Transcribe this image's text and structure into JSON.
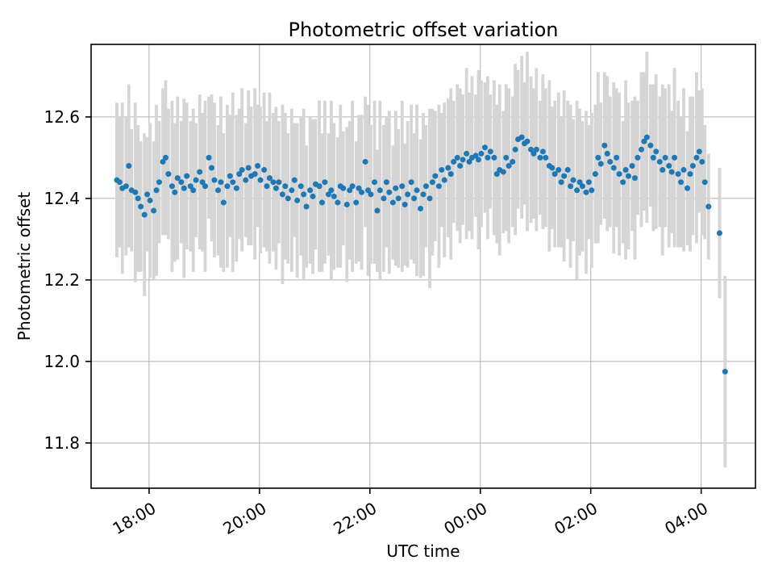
{
  "figure": {
    "title": "Photometric offset variation",
    "xlabel": "UTC time",
    "ylabel": "Photometric offset"
  },
  "chart_data": {
    "type": "scatter",
    "title": "Photometric offset variation",
    "xlabel": "UTC time",
    "ylabel": "Photometric offset",
    "x_unit": "minutes after 17:00 UTC",
    "grid": true,
    "legend": "none",
    "xlim": [
      -3,
      719
    ],
    "ylim": [
      11.689,
      12.778
    ],
    "x_ticks": [
      {
        "t": 60,
        "label": "18:00"
      },
      {
        "t": 180,
        "label": "20:00"
      },
      {
        "t": 300,
        "label": "22:00"
      },
      {
        "t": 420,
        "label": "00:00"
      },
      {
        "t": 540,
        "label": "02:00"
      },
      {
        "t": 660,
        "label": "04:00"
      }
    ],
    "y_ticks": [
      11.8,
      12.0,
      12.2,
      12.4,
      12.6
    ],
    "marker_color": "#1f77b4",
    "errorbar_color": "#d5d5d5",
    "grid_color": "#b0b0b0",
    "axis_color": "#000000",
    "points_format": [
      "t_minutes_after_17:00",
      "photometric_offset",
      "error_half_length"
    ],
    "points": [
      [
        25,
        12.445,
        0.19
      ],
      [
        28,
        12.44,
        0.16
      ],
      [
        31,
        12.425,
        0.21
      ],
      [
        35,
        12.43,
        0.17
      ],
      [
        38,
        12.48,
        0.2
      ],
      [
        41,
        12.42,
        0.15
      ],
      [
        45,
        12.415,
        0.22
      ],
      [
        48,
        12.4,
        0.18
      ],
      [
        51,
        12.38,
        0.16
      ],
      [
        55,
        12.36,
        0.2
      ],
      [
        58,
        12.41,
        0.14
      ],
      [
        61,
        12.395,
        0.19
      ],
      [
        65,
        12.37,
        0.17
      ],
      [
        68,
        12.42,
        0.21
      ],
      [
        71,
        12.44,
        0.15
      ],
      [
        75,
        12.49,
        0.18
      ],
      [
        78,
        12.5,
        0.19
      ],
      [
        81,
        12.46,
        0.16
      ],
      [
        85,
        12.43,
        0.21
      ],
      [
        88,
        12.415,
        0.17
      ],
      [
        91,
        12.45,
        0.2
      ],
      [
        95,
        12.44,
        0.15
      ],
      [
        98,
        12.425,
        0.22
      ],
      [
        101,
        12.455,
        0.18
      ],
      [
        105,
        12.43,
        0.16
      ],
      [
        108,
        12.42,
        0.2
      ],
      [
        111,
        12.445,
        0.14
      ],
      [
        115,
        12.465,
        0.19
      ],
      [
        118,
        12.44,
        0.17
      ],
      [
        121,
        12.43,
        0.21
      ],
      [
        125,
        12.5,
        0.15
      ],
      [
        128,
        12.475,
        0.18
      ],
      [
        131,
        12.445,
        0.19
      ],
      [
        135,
        12.42,
        0.16
      ],
      [
        138,
        12.44,
        0.21
      ],
      [
        141,
        12.39,
        0.17
      ],
      [
        145,
        12.43,
        0.2
      ],
      [
        148,
        12.455,
        0.15
      ],
      [
        151,
        12.44,
        0.22
      ],
      [
        155,
        12.425,
        0.18
      ],
      [
        158,
        12.46,
        0.16
      ],
      [
        161,
        12.47,
        0.2
      ],
      [
        165,
        12.445,
        0.14
      ],
      [
        168,
        12.475,
        0.19
      ],
      [
        171,
        12.455,
        0.17
      ],
      [
        175,
        12.46,
        0.21
      ],
      [
        178,
        12.48,
        0.15
      ],
      [
        181,
        12.445,
        0.18
      ],
      [
        185,
        12.47,
        0.19
      ],
      [
        188,
        12.43,
        0.16
      ],
      [
        191,
        12.45,
        0.21
      ],
      [
        195,
        12.44,
        0.17
      ],
      [
        198,
        12.425,
        0.2
      ],
      [
        201,
        12.44,
        0.15
      ],
      [
        205,
        12.41,
        0.22
      ],
      [
        208,
        12.43,
        0.18
      ],
      [
        211,
        12.4,
        0.16
      ],
      [
        215,
        12.42,
        0.2
      ],
      [
        218,
        12.445,
        0.14
      ],
      [
        221,
        12.395,
        0.19
      ],
      [
        225,
        12.43,
        0.17
      ],
      [
        228,
        12.41,
        0.21
      ],
      [
        231,
        12.38,
        0.15
      ],
      [
        235,
        12.42,
        0.18
      ],
      [
        238,
        12.405,
        0.19
      ],
      [
        241,
        12.435,
        0.16
      ],
      [
        245,
        12.43,
        0.21
      ],
      [
        248,
        12.39,
        0.17
      ],
      [
        251,
        12.44,
        0.2
      ],
      [
        255,
        12.41,
        0.15
      ],
      [
        258,
        12.42,
        0.22
      ],
      [
        261,
        12.405,
        0.18
      ],
      [
        265,
        12.39,
        0.16
      ],
      [
        268,
        12.43,
        0.2
      ],
      [
        271,
        12.425,
        0.14
      ],
      [
        275,
        12.385,
        0.19
      ],
      [
        278,
        12.42,
        0.17
      ],
      [
        281,
        12.43,
        0.21
      ],
      [
        285,
        12.39,
        0.15
      ],
      [
        288,
        12.425,
        0.18
      ],
      [
        291,
        12.415,
        0.19
      ],
      [
        295,
        12.49,
        0.16
      ],
      [
        298,
        12.42,
        0.21
      ],
      [
        301,
        12.41,
        0.17
      ],
      [
        305,
        12.44,
        0.2
      ],
      [
        308,
        12.37,
        0.15
      ],
      [
        311,
        12.42,
        0.22
      ],
      [
        315,
        12.4,
        0.18
      ],
      [
        318,
        12.44,
        0.16
      ],
      [
        321,
        12.415,
        0.2
      ],
      [
        325,
        12.39,
        0.14
      ],
      [
        328,
        12.425,
        0.19
      ],
      [
        331,
        12.4,
        0.17
      ],
      [
        335,
        12.43,
        0.21
      ],
      [
        338,
        12.385,
        0.15
      ],
      [
        341,
        12.41,
        0.18
      ],
      [
        345,
        12.44,
        0.19
      ],
      [
        348,
        12.4,
        0.16
      ],
      [
        351,
        12.42,
        0.21
      ],
      [
        355,
        12.375,
        0.17
      ],
      [
        358,
        12.41,
        0.2
      ],
      [
        361,
        12.43,
        0.15
      ],
      [
        365,
        12.4,
        0.22
      ],
      [
        368,
        12.44,
        0.18
      ],
      [
        371,
        12.455,
        0.16
      ],
      [
        375,
        12.43,
        0.2
      ],
      [
        378,
        12.47,
        0.14
      ],
      [
        381,
        12.445,
        0.19
      ],
      [
        385,
        12.475,
        0.17
      ],
      [
        388,
        12.46,
        0.21
      ],
      [
        391,
        12.49,
        0.15
      ],
      [
        395,
        12.5,
        0.18
      ],
      [
        398,
        12.48,
        0.19
      ],
      [
        401,
        12.495,
        0.16
      ],
      [
        405,
        12.51,
        0.21
      ],
      [
        408,
        12.49,
        0.17
      ],
      [
        411,
        12.5,
        0.2
      ],
      [
        415,
        12.505,
        0.15
      ],
      [
        418,
        12.495,
        0.22
      ],
      [
        421,
        12.51,
        0.18
      ],
      [
        425,
        12.525,
        0.16
      ],
      [
        428,
        12.5,
        0.2
      ],
      [
        431,
        12.515,
        0.14
      ],
      [
        435,
        12.5,
        0.19
      ],
      [
        438,
        12.46,
        0.17
      ],
      [
        441,
        12.47,
        0.21
      ],
      [
        445,
        12.465,
        0.15
      ],
      [
        448,
        12.5,
        0.18
      ],
      [
        451,
        12.48,
        0.19
      ],
      [
        455,
        12.49,
        0.16
      ],
      [
        458,
        12.52,
        0.21
      ],
      [
        461,
        12.545,
        0.17
      ],
      [
        465,
        12.55,
        0.2
      ],
      [
        468,
        12.535,
        0.15
      ],
      [
        471,
        12.54,
        0.22
      ],
      [
        475,
        12.52,
        0.18
      ],
      [
        478,
        12.51,
        0.16
      ],
      [
        481,
        12.52,
        0.2
      ],
      [
        485,
        12.5,
        0.14
      ],
      [
        488,
        12.515,
        0.19
      ],
      [
        491,
        12.5,
        0.17
      ],
      [
        495,
        12.48,
        0.21
      ],
      [
        498,
        12.475,
        0.15
      ],
      [
        501,
        12.46,
        0.18
      ],
      [
        505,
        12.47,
        0.19
      ],
      [
        508,
        12.44,
        0.16
      ],
      [
        511,
        12.455,
        0.21
      ],
      [
        515,
        12.47,
        0.17
      ],
      [
        518,
        12.43,
        0.2
      ],
      [
        521,
        12.445,
        0.15
      ],
      [
        525,
        12.42,
        0.22
      ],
      [
        528,
        12.44,
        0.18
      ],
      [
        531,
        12.43,
        0.16
      ],
      [
        535,
        12.415,
        0.2
      ],
      [
        538,
        12.44,
        0.14
      ],
      [
        541,
        12.42,
        0.19
      ],
      [
        545,
        12.46,
        0.17
      ],
      [
        548,
        12.5,
        0.21
      ],
      [
        551,
        12.485,
        0.15
      ],
      [
        555,
        12.53,
        0.18
      ],
      [
        558,
        12.51,
        0.19
      ],
      [
        561,
        12.49,
        0.16
      ],
      [
        565,
        12.475,
        0.21
      ],
      [
        568,
        12.5,
        0.17
      ],
      [
        571,
        12.46,
        0.2
      ],
      [
        575,
        12.44,
        0.15
      ],
      [
        578,
        12.47,
        0.22
      ],
      [
        581,
        12.455,
        0.18
      ],
      [
        585,
        12.48,
        0.16
      ],
      [
        588,
        12.45,
        0.2
      ],
      [
        591,
        12.5,
        0.14
      ],
      [
        595,
        12.52,
        0.19
      ],
      [
        598,
        12.54,
        0.17
      ],
      [
        601,
        12.55,
        0.21
      ],
      [
        605,
        12.53,
        0.15
      ],
      [
        608,
        12.5,
        0.18
      ],
      [
        611,
        12.515,
        0.19
      ],
      [
        615,
        12.49,
        0.16
      ],
      [
        618,
        12.47,
        0.21
      ],
      [
        621,
        12.5,
        0.17
      ],
      [
        625,
        12.48,
        0.2
      ],
      [
        628,
        12.465,
        0.15
      ],
      [
        631,
        12.5,
        0.22
      ],
      [
        635,
        12.46,
        0.18
      ],
      [
        638,
        12.44,
        0.16
      ],
      [
        641,
        12.47,
        0.2
      ],
      [
        645,
        12.425,
        0.14
      ],
      [
        648,
        12.46,
        0.19
      ],
      [
        651,
        12.48,
        0.17
      ],
      [
        655,
        12.5,
        0.21
      ],
      [
        658,
        12.515,
        0.15
      ],
      [
        661,
        12.49,
        0.18
      ],
      [
        664,
        12.44,
        0.14
      ],
      [
        668,
        12.38,
        0.13
      ],
      [
        680,
        12.315,
        0.16
      ],
      [
        686,
        11.975,
        0.235
      ]
    ]
  }
}
